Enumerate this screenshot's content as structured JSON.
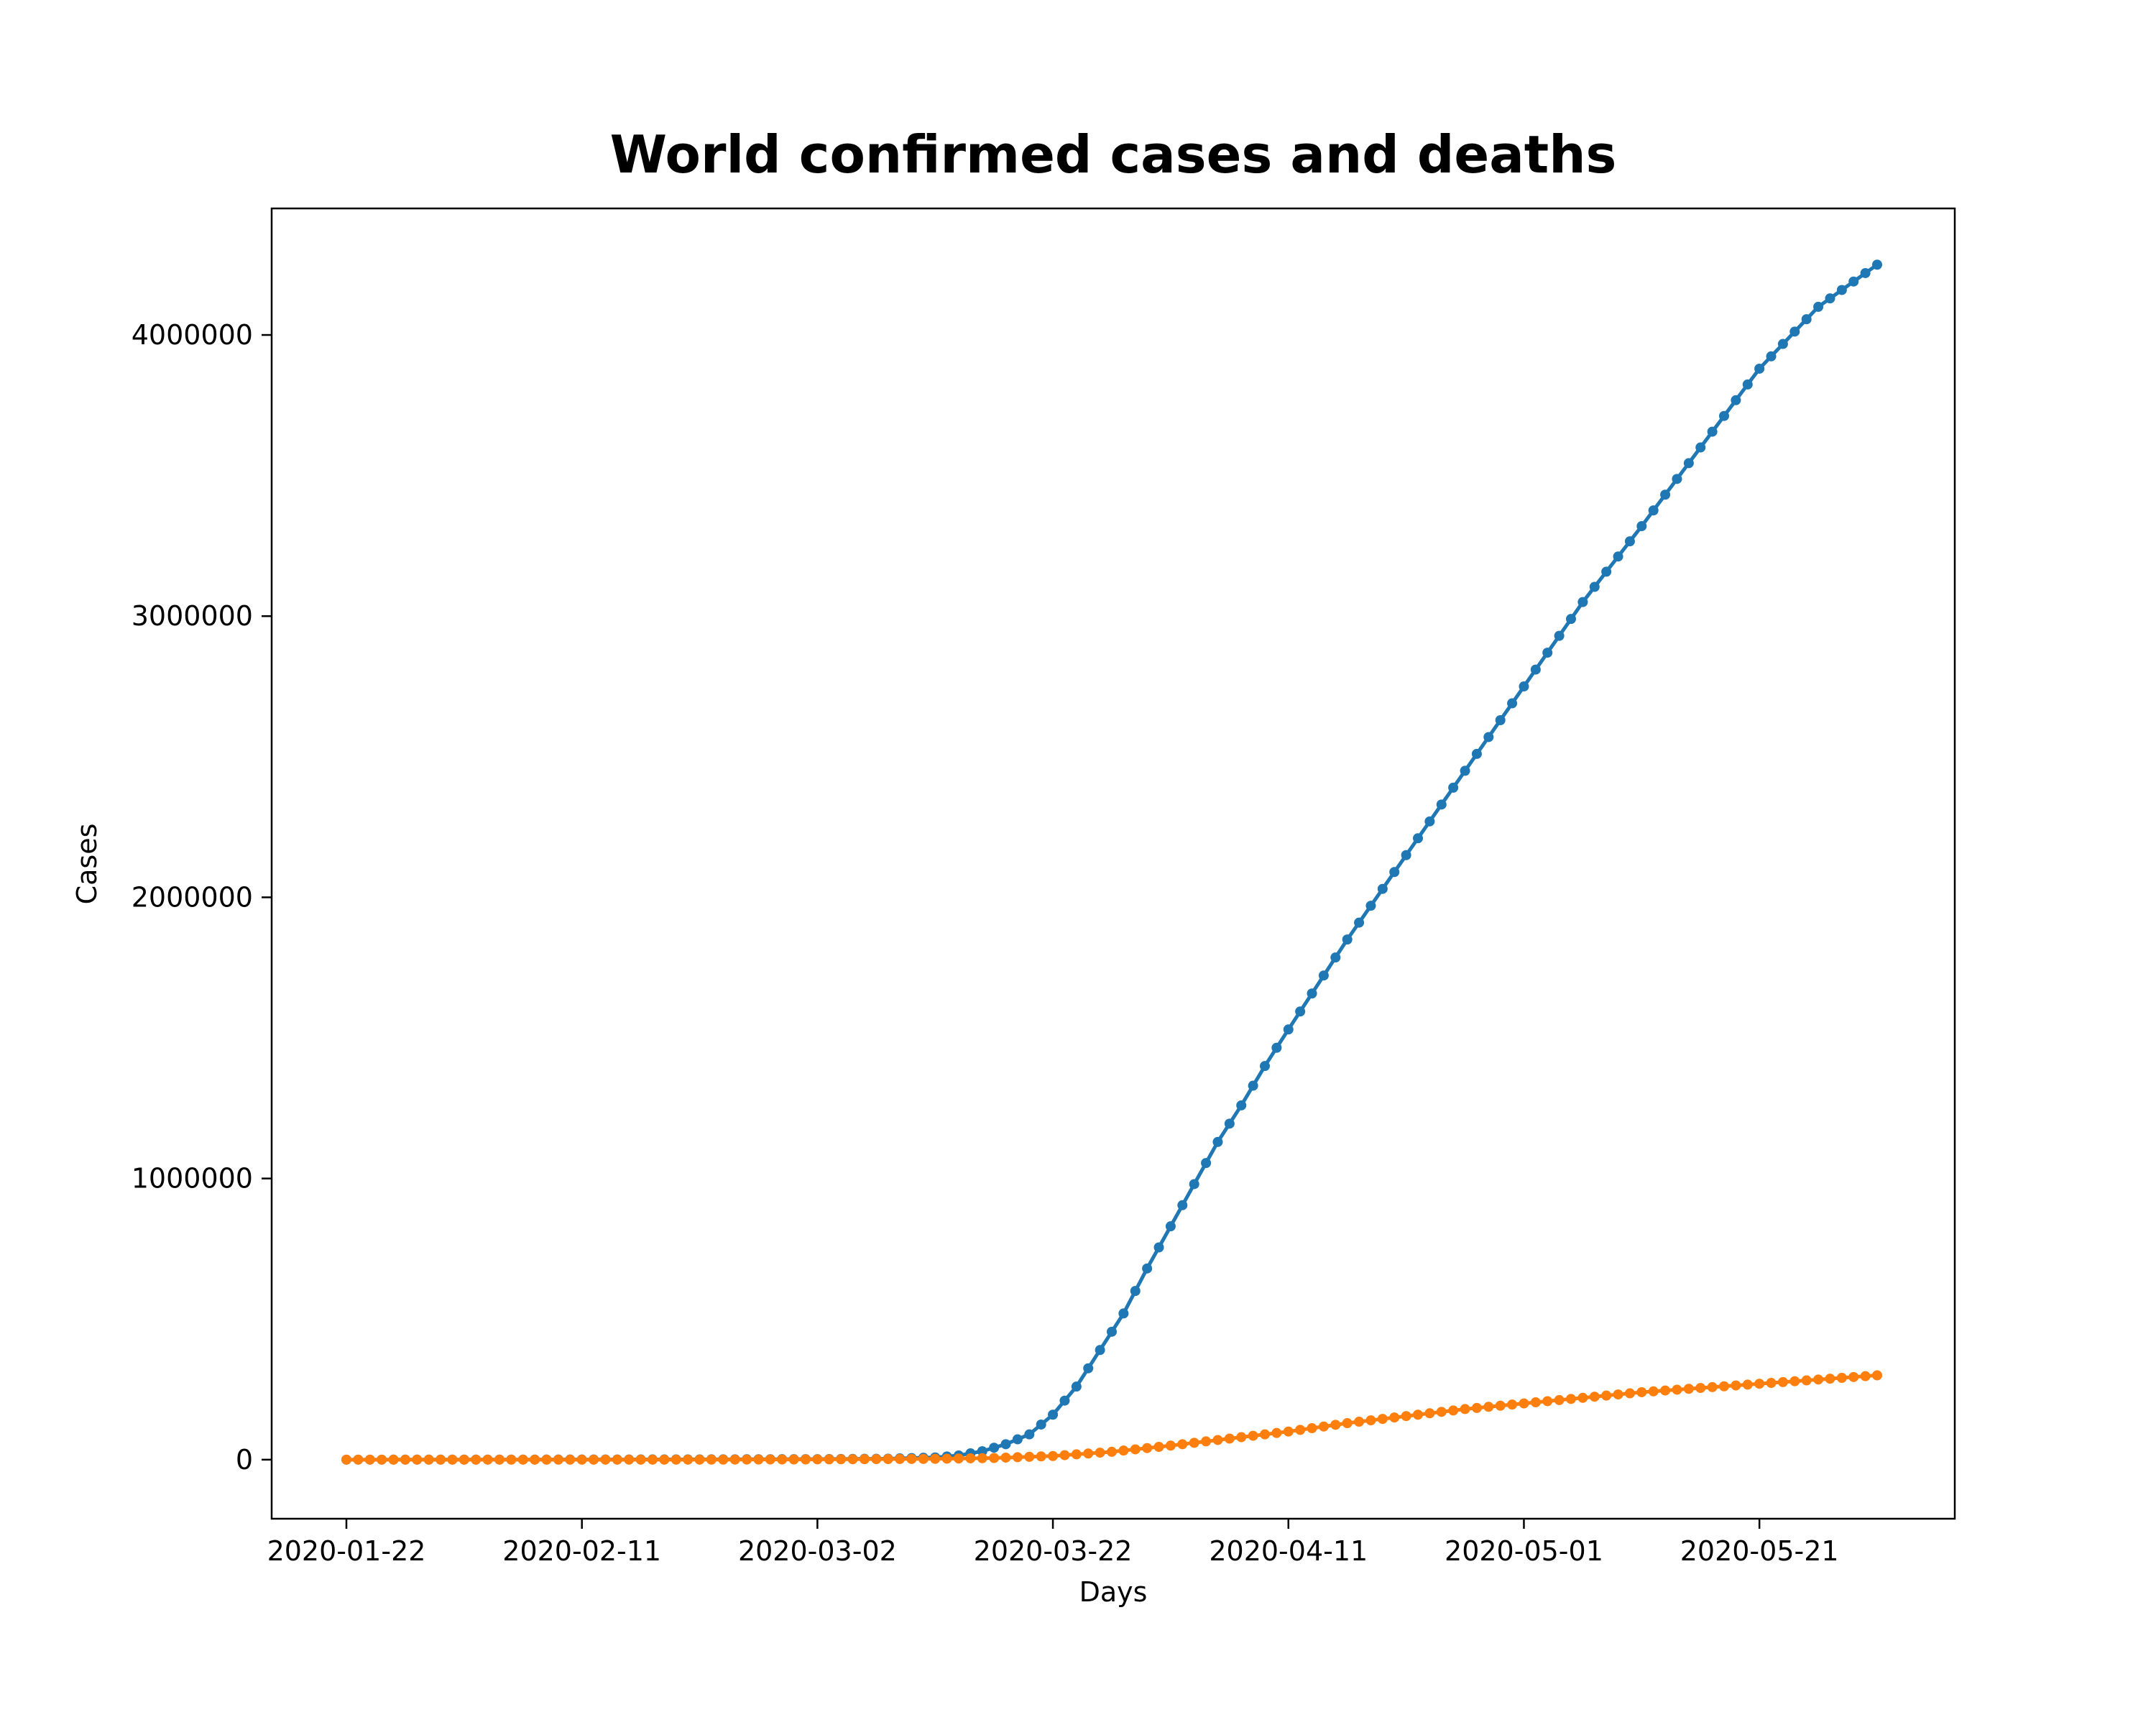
{
  "chart_data": {
    "type": "line",
    "title": "World confirmed cases and deaths",
    "xlabel": "Days",
    "ylabel": "Cases",
    "x_range": [
      "2020-01-22",
      "2020-05-31"
    ],
    "ylim": [
      -210000,
      4450000
    ],
    "x_ticks": [
      "2020-01-22",
      "2020-02-11",
      "2020-03-02",
      "2020-03-22",
      "2020-04-11",
      "2020-05-01",
      "2020-05-21"
    ],
    "y_ticks": [
      0,
      1000000,
      2000000,
      3000000,
      4000000
    ],
    "y_tick_labels": [
      "0",
      "1000000",
      "2000000",
      "3000000",
      "4000000"
    ],
    "grid": false,
    "legend": "none",
    "colors": {
      "series_1": "#1f77b4",
      "series_2": "#ff7f0e"
    },
    "series": [
      {
        "color": "#1f77b4",
        "points": [
          [
            "2020-01-22",
            0
          ],
          [
            "2020-02-11",
            500
          ],
          [
            "2020-02-21",
            1000
          ],
          [
            "2020-03-02",
            2000
          ],
          [
            "2020-03-08",
            3500
          ],
          [
            "2020-03-12",
            8000
          ],
          [
            "2020-03-14",
            15000
          ],
          [
            "2020-03-16",
            30000
          ],
          [
            "2020-03-18",
            55000
          ],
          [
            "2020-03-20",
            90000
          ],
          [
            "2020-03-22",
            160000
          ],
          [
            "2020-03-24",
            260000
          ],
          [
            "2020-03-26",
            390000
          ],
          [
            "2020-03-28",
            520000
          ],
          [
            "2020-03-30",
            680000
          ],
          [
            "2020-04-01",
            830000
          ],
          [
            "2020-04-03",
            980000
          ],
          [
            "2020-04-05",
            1130000
          ],
          [
            "2020-04-07",
            1260000
          ],
          [
            "2020-04-09",
            1400000
          ],
          [
            "2020-04-11",
            1530000
          ],
          [
            "2020-04-16",
            1850000
          ],
          [
            "2020-04-21",
            2150000
          ],
          [
            "2020-04-26",
            2450000
          ],
          [
            "2020-05-01",
            2750000
          ],
          [
            "2020-05-06",
            3050000
          ],
          [
            "2020-05-11",
            3320000
          ],
          [
            "2020-05-16",
            3600000
          ],
          [
            "2020-05-21",
            3880000
          ],
          [
            "2020-05-26",
            4100000
          ],
          [
            "2020-05-31",
            4250000
          ]
        ]
      },
      {
        "color": "#ff7f0e",
        "points": [
          [
            "2020-01-22",
            0
          ],
          [
            "2020-02-21",
            0
          ],
          [
            "2020-03-02",
            1000
          ],
          [
            "2020-03-12",
            3000
          ],
          [
            "2020-03-17",
            6000
          ],
          [
            "2020-03-22",
            13000
          ],
          [
            "2020-03-27",
            28000
          ],
          [
            "2020-04-01",
            50000
          ],
          [
            "2020-04-06",
            75000
          ],
          [
            "2020-04-11",
            100000
          ],
          [
            "2020-04-16",
            130000
          ],
          [
            "2020-04-21",
            155000
          ],
          [
            "2020-04-26",
            180000
          ],
          [
            "2020-05-01",
            200000
          ],
          [
            "2020-05-06",
            220000
          ],
          [
            "2020-05-11",
            240000
          ],
          [
            "2020-05-16",
            255000
          ],
          [
            "2020-05-21",
            270000
          ],
          [
            "2020-05-26",
            285000
          ],
          [
            "2020-05-31",
            300000
          ]
        ]
      }
    ]
  }
}
